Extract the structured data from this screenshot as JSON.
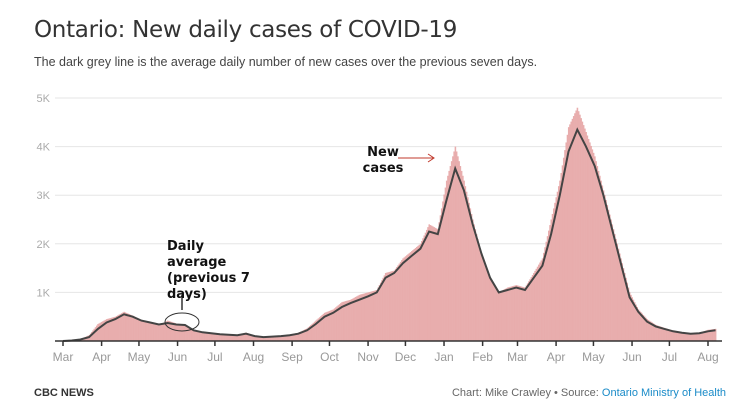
{
  "title": "Ontario: New daily cases of COVID-19",
  "subtitle": "The dark grey line is the average daily number of new cases over the previous seven days.",
  "footer": {
    "brand": "CBC NEWS",
    "credit": "Chart: Mike Crawley • Source: ",
    "source_link": "Ontario Ministry of Health"
  },
  "annotations": {
    "new_cases": "New cases",
    "daily_average": "Daily average (previous 7 days)"
  },
  "colors": {
    "bars": "#e8adad",
    "line": "#444444",
    "arrow": "#c0392b"
  },
  "chart_data": {
    "type": "bar",
    "title": "Ontario: New daily cases of COVID-19",
    "xlabel": "",
    "ylabel": "",
    "ylim": [
      0,
      5000
    ],
    "yticks": [
      "1K",
      "2K",
      "3K",
      "4K",
      "5K"
    ],
    "ytick_values": [
      1000,
      2000,
      3000,
      4000,
      5000
    ],
    "xticks": [
      "Mar",
      "Apr",
      "May",
      "Jun",
      "Jul",
      "Aug",
      "Sep",
      "Oct",
      "Nov",
      "Dec",
      "Jan",
      "Feb",
      "Mar",
      "Apr",
      "May",
      "Jun",
      "Jul",
      "Aug"
    ],
    "xtick_dates": [
      "2020-03-01",
      "2020-04-01",
      "2020-05-01",
      "2020-06-01",
      "2020-07-01",
      "2020-08-01",
      "2020-09-01",
      "2020-10-01",
      "2020-11-01",
      "2020-12-01",
      "2021-01-01",
      "2021-02-01",
      "2021-03-01",
      "2021-04-01",
      "2021-05-01",
      "2021-06-01",
      "2021-07-01",
      "2021-08-01"
    ],
    "grid": true,
    "x": [
      "2020-03-01",
      "2020-03-08",
      "2020-03-15",
      "2020-03-22",
      "2020-03-29",
      "2020-04-05",
      "2020-04-12",
      "2020-04-19",
      "2020-04-26",
      "2020-05-03",
      "2020-05-10",
      "2020-05-17",
      "2020-05-24",
      "2020-05-31",
      "2020-06-07",
      "2020-06-14",
      "2020-06-21",
      "2020-06-28",
      "2020-07-05",
      "2020-07-12",
      "2020-07-19",
      "2020-07-26",
      "2020-08-02",
      "2020-08-09",
      "2020-08-16",
      "2020-08-23",
      "2020-08-30",
      "2020-09-06",
      "2020-09-13",
      "2020-09-20",
      "2020-09-27",
      "2020-10-04",
      "2020-10-11",
      "2020-10-18",
      "2020-10-25",
      "2020-11-01",
      "2020-11-08",
      "2020-11-15",
      "2020-11-22",
      "2020-11-29",
      "2020-12-06",
      "2020-12-13",
      "2020-12-20",
      "2020-12-27",
      "2021-01-03",
      "2021-01-10",
      "2021-01-17",
      "2021-01-24",
      "2021-01-31",
      "2021-02-07",
      "2021-02-14",
      "2021-02-21",
      "2021-02-28",
      "2021-03-07",
      "2021-03-14",
      "2021-03-21",
      "2021-03-28",
      "2021-04-04",
      "2021-04-11",
      "2021-04-18",
      "2021-04-25",
      "2021-05-02",
      "2021-05-09",
      "2021-05-16",
      "2021-05-23",
      "2021-05-30",
      "2021-06-06",
      "2021-06-13",
      "2021-06-20",
      "2021-06-27",
      "2021-07-04",
      "2021-07-11",
      "2021-07-18",
      "2021-07-25",
      "2021-08-01",
      "2021-08-07"
    ],
    "series": [
      {
        "name": "New cases",
        "values": [
          0,
          10,
          40,
          120,
          350,
          450,
          500,
          600,
          520,
          430,
          380,
          330,
          420,
          360,
          330,
          220,
          180,
          160,
          140,
          130,
          120,
          170,
          100,
          80,
          90,
          110,
          130,
          170,
          260,
          420,
          580,
          650,
          800,
          850,
          950,
          1000,
          1050,
          1400,
          1450,
          1700,
          1850,
          2000,
          2400,
          2300,
          3300,
          4000,
          3300,
          2500,
          1800,
          1300,
          1000,
          1100,
          1150,
          1100,
          1400,
          1700,
          2500,
          3300,
          4400,
          4800,
          4300,
          3800,
          3100,
          2400,
          1700,
          1000,
          650,
          450,
          330,
          270,
          210,
          180,
          160,
          170,
          230,
          250
        ]
      },
      {
        "name": "Daily average (previous 7 days)",
        "values": [
          0,
          10,
          30,
          80,
          250,
          380,
          450,
          550,
          500,
          420,
          380,
          340,
          370,
          340,
          330,
          220,
          180,
          160,
          140,
          130,
          120,
          150,
          100,
          80,
          90,
          100,
          120,
          150,
          220,
          350,
          500,
          580,
          700,
          780,
          850,
          920,
          1000,
          1300,
          1400,
          1600,
          1750,
          1900,
          2250,
          2200,
          2900,
          3550,
          3100,
          2400,
          1800,
          1300,
          1000,
          1050,
          1100,
          1050,
          1300,
          1550,
          2200,
          3000,
          3900,
          4350,
          4000,
          3600,
          3000,
          2300,
          1600,
          900,
          600,
          400,
          300,
          250,
          200,
          170,
          150,
          160,
          200,
          220
        ]
      }
    ]
  }
}
